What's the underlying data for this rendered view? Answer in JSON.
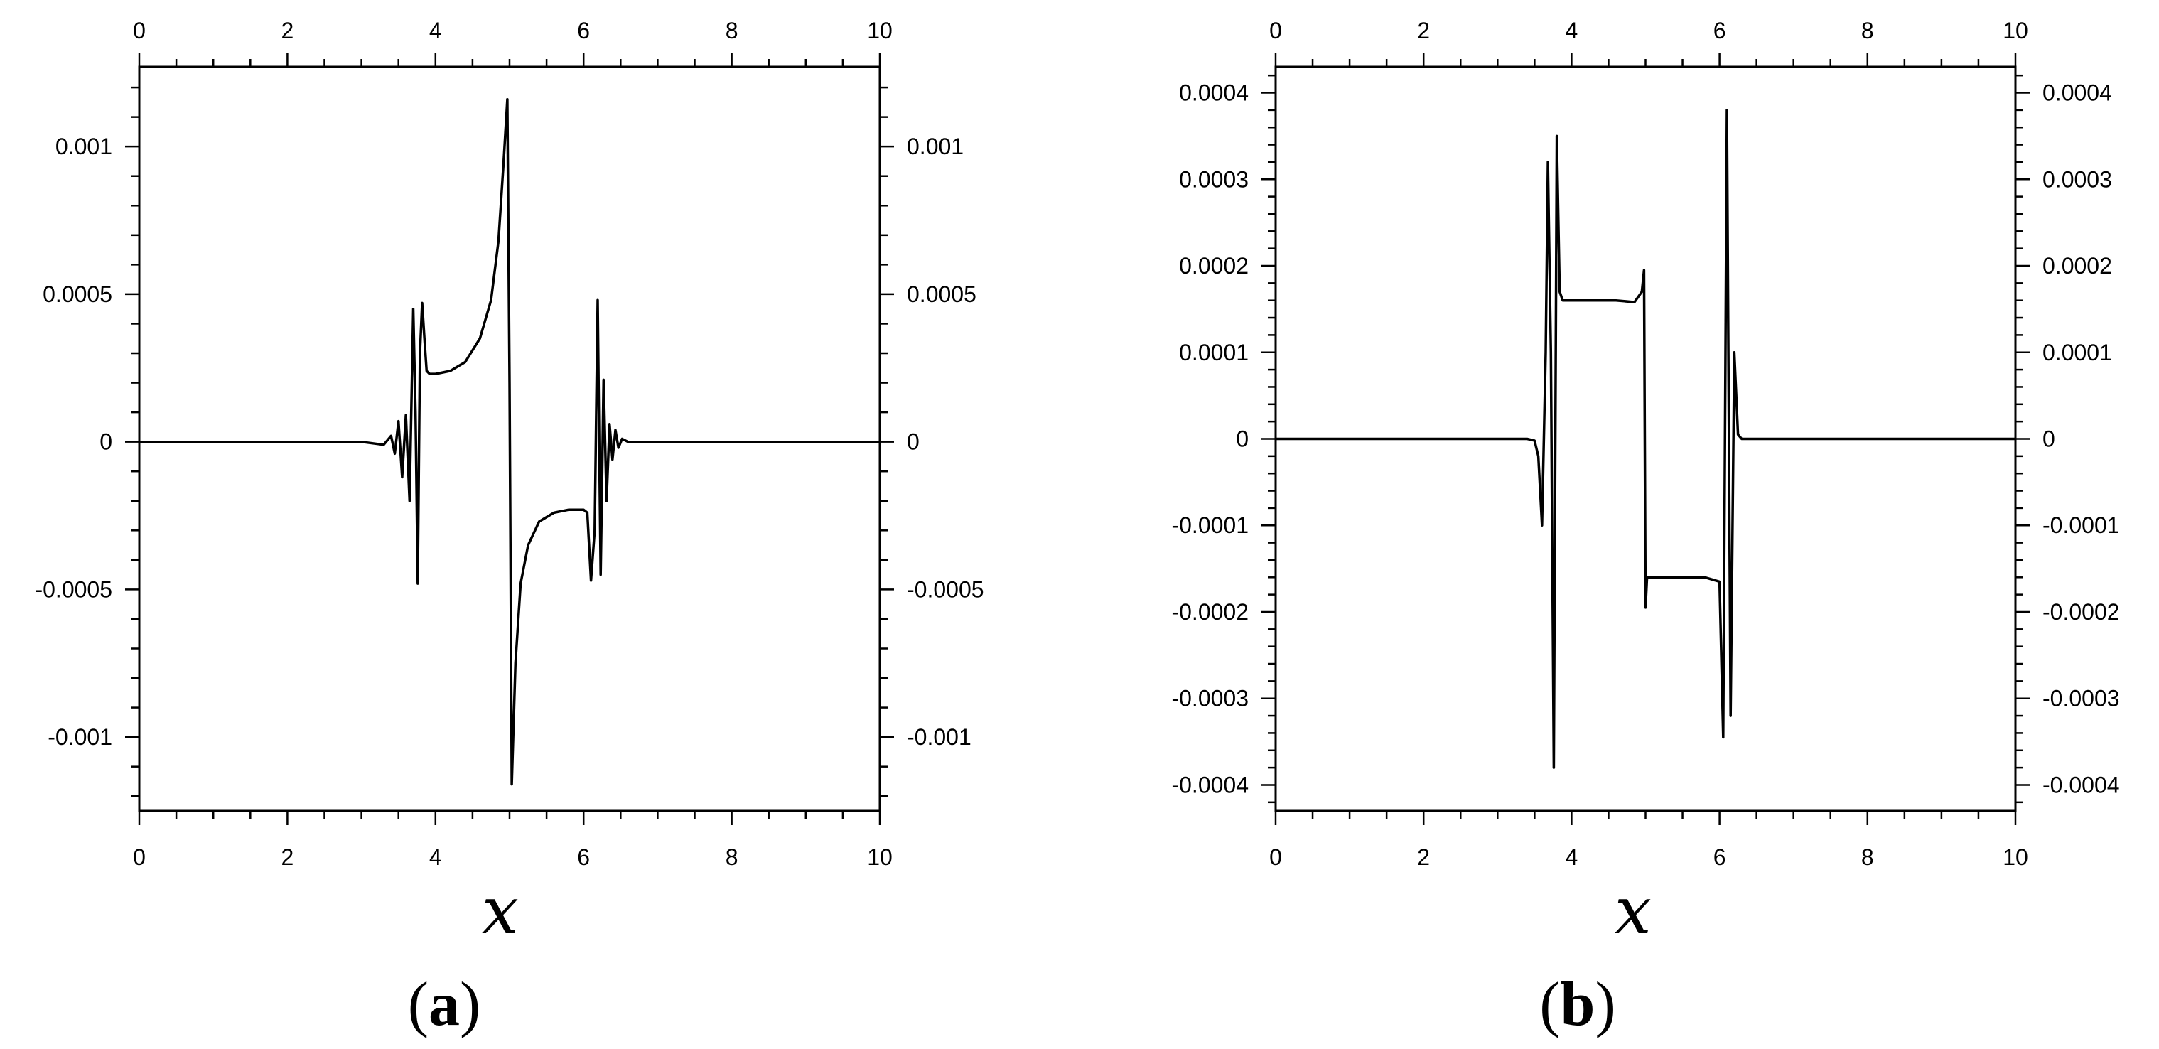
{
  "chart_data": [
    {
      "type": "line",
      "panel_label": "a",
      "xlabel": "x",
      "xlim": [
        0,
        10
      ],
      "xticks": [
        0,
        2,
        4,
        6,
        8,
        10
      ],
      "ylim": [
        -0.00125,
        0.00127
      ],
      "yticks": [
        -0.001,
        -0.0005,
        0,
        0.0005,
        0.001
      ],
      "ytick_labels": [
        "-0.001",
        "-0.0005",
        "0",
        "0.0005",
        "0.001"
      ],
      "grid": false,
      "line_color": "#000000",
      "series": [
        {
          "x": [
            0,
            3.0,
            3.3,
            3.4,
            3.45,
            3.5,
            3.55,
            3.6,
            3.65,
            3.7,
            3.73,
            3.76,
            3.79,
            3.82,
            3.85,
            3.88,
            3.92,
            4.0,
            4.2,
            4.4,
            4.6,
            4.75,
            4.85,
            4.92,
            4.97,
            5.0,
            5.03,
            5.08,
            5.15,
            5.25,
            5.4,
            5.6,
            5.8,
            6.0,
            6.05,
            6.1,
            6.15,
            6.19,
            6.23,
            6.27,
            6.31,
            6.35,
            6.39,
            6.43,
            6.47,
            6.52,
            6.6,
            6.7,
            7.0,
            10
          ],
          "y": [
            0,
            0,
            -1e-05,
            2e-05,
            -4e-05,
            7e-05,
            -0.00012,
            9e-05,
            -0.0002,
            0.00045,
            0.0001,
            -0.00048,
            0.0003,
            0.00047,
            0.00035,
            0.00024,
            0.00023,
            0.00023,
            0.00024,
            0.00027,
            0.00035,
            0.00048,
            0.00068,
            0.00095,
            0.00116,
            0.0002,
            -0.00116,
            -0.00075,
            -0.00048,
            -0.00035,
            -0.00027,
            -0.00024,
            -0.00023,
            -0.00023,
            -0.00024,
            -0.00047,
            -0.0003,
            0.00048,
            -0.00045,
            0.00021,
            -0.0002,
            6e-05,
            -6e-05,
            4e-05,
            -2e-05,
            1e-05,
            0,
            0,
            0,
            0
          ]
        }
      ]
    },
    {
      "type": "line",
      "panel_label": "b",
      "xlabel": "x",
      "xlim": [
        0,
        10
      ],
      "xticks": [
        0,
        2,
        4,
        6,
        8,
        10
      ],
      "ylim": [
        -0.00043,
        0.00043
      ],
      "yticks": [
        -0.0004,
        -0.0003,
        -0.0002,
        -0.0001,
        0,
        0.0001,
        0.0002,
        0.0003,
        0.0004
      ],
      "ytick_labels": [
        "-0.0004",
        "-0.0003",
        "-0.0002",
        "-0.0001",
        "0",
        "0.0001",
        "0.0002",
        "0.0003",
        "0.0004"
      ],
      "grid": false,
      "line_color": "#000000",
      "series": [
        {
          "x": [
            0,
            3.4,
            3.5,
            3.55,
            3.6,
            3.65,
            3.68,
            3.72,
            3.76,
            3.8,
            3.84,
            3.88,
            3.92,
            3.96,
            4.0,
            4.3,
            4.6,
            4.85,
            4.95,
            4.98,
            5.0,
            5.02,
            5.05,
            5.2,
            5.5,
            5.8,
            6.0,
            6.05,
            6.1,
            6.15,
            6.2,
            6.25,
            6.3,
            6.35,
            6.4,
            6.45,
            6.5,
            6.6,
            7.0,
            10
          ],
          "y": [
            0,
            0,
            -2e-06,
            -2e-05,
            -0.0001,
            0.0001,
            0.00032,
            0.0001,
            -0.00038,
            0.00035,
            0.00017,
            0.00016,
            0.00016,
            0.00016,
            0.00016,
            0.00016,
            0.00016,
            0.000158,
            0.00017,
            0.000195,
            -0.000195,
            -0.00016,
            -0.00016,
            -0.00016,
            -0.00016,
            -0.00016,
            -0.000165,
            -0.000345,
            0.00038,
            -0.00032,
            0.0001,
            5e-06,
            0,
            0,
            0,
            0,
            0,
            0,
            0,
            0
          ]
        }
      ]
    }
  ]
}
